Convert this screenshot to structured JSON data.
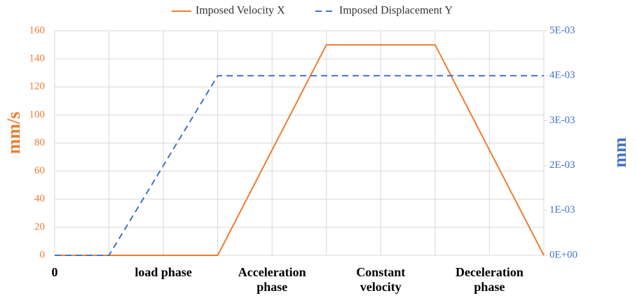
{
  "chart_data": {
    "type": "line",
    "categories": [
      "0",
      null,
      "load phase",
      null,
      "Acceleration phase",
      null,
      "Constant velocity",
      null,
      "Deceleration phase",
      null
    ],
    "series": [
      {
        "name": "Imposed Velocity X",
        "color": "#ed7d31",
        "values": [
          0,
          0,
          0,
          0,
          75,
          150,
          150,
          150,
          75,
          0
        ]
      },
      {
        "name": "Imposed Displacement Y",
        "color": "#4472c4",
        "axis": "y2",
        "dashed": true,
        "values": [
          0,
          0,
          0.002,
          0.004,
          0.004,
          0.004,
          0.004,
          0.004,
          0.004,
          0.004
        ]
      }
    ],
    "ylabel": "mm/s",
    "y2label": "mm",
    "ylim": [
      0,
      160
    ],
    "yticks": [
      0,
      20,
      40,
      60,
      80,
      100,
      120,
      140,
      160
    ],
    "y2lim": [
      0,
      0.005
    ],
    "y2ticks": [
      {
        "value": 0,
        "label": "0E+00"
      },
      {
        "value": 0.001,
        "label": "1E-03"
      },
      {
        "value": 0.002,
        "label": "2E-03"
      },
      {
        "value": 0.003,
        "label": "3E-03"
      },
      {
        "value": 0.004,
        "label": "4E-03"
      },
      {
        "value": 0.005,
        "label": "5E-03"
      }
    ],
    "grid": true,
    "legend": "top"
  }
}
